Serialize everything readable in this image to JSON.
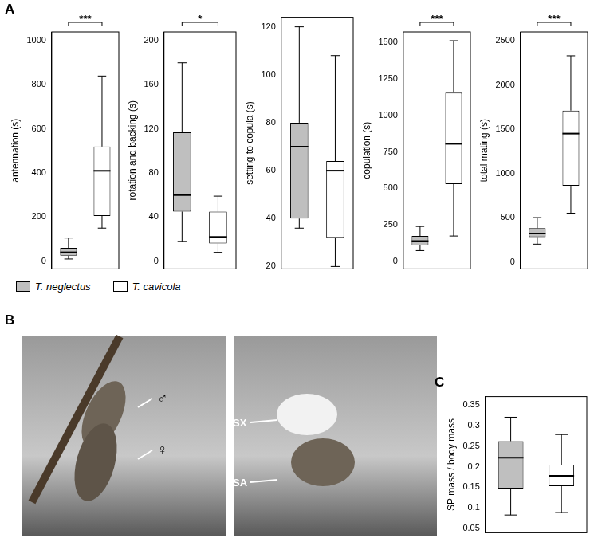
{
  "chart_data": [
    {
      "type": "box",
      "ylabel": "antennation (s)",
      "ylim": [
        -35,
        1040
      ],
      "yticks": [
        0,
        200,
        400,
        600,
        800,
        1000
      ],
      "grid": false,
      "tick_labels": "y",
      "significance": "***",
      "series": [
        {
          "name": "T. neglectus",
          "color": "#bfbfbf",
          "min": 10,
          "q1": 25,
          "median": 40,
          "q3": 60,
          "max": 105
        },
        {
          "name": "T. cavicola",
          "color": "#ffffff",
          "min": 150,
          "q1": 205,
          "median": 410,
          "q3": 520,
          "max": 840
        }
      ]
    },
    {
      "type": "box",
      "ylabel": "rotation and backing (s)",
      "ylim": [
        -7,
        208
      ],
      "yticks": [
        0,
        40,
        80,
        120,
        160,
        200
      ],
      "grid": false,
      "tick_labels": "y",
      "significance": "*",
      "series": [
        {
          "name": "T. neglectus",
          "color": "#bfbfbf",
          "min": 18,
          "q1": 45,
          "median": 60,
          "q3": 117,
          "max": 180
        },
        {
          "name": "T. cavicola",
          "color": "#ffffff",
          "min": 8,
          "q1": 16,
          "median": 22,
          "q3": 45,
          "max": 59
        }
      ]
    },
    {
      "type": "box",
      "ylabel": "setting to copula (s)",
      "ylim": [
        19,
        124
      ],
      "yticks": [
        20,
        40,
        60,
        80,
        100,
        120
      ],
      "grid": false,
      "tick_labels": "y",
      "series": [
        {
          "name": "T. neglectus",
          "color": "#bfbfbf",
          "min": 36,
          "q1": 40,
          "median": 70,
          "q3": 80,
          "max": 120
        },
        {
          "name": "T. cavicola",
          "color": "#ffffff",
          "min": 20,
          "q1": 32,
          "median": 60,
          "q3": 64,
          "max": 108
        }
      ]
    },
    {
      "type": "box",
      "ylabel": "copulation (s)",
      "ylim": [
        -50,
        1570
      ],
      "yticks": [
        0,
        250,
        500,
        750,
        1000,
        1250,
        1500
      ],
      "grid": false,
      "tick_labels": "y",
      "significance": "***",
      "series": [
        {
          "name": "T. neglectus",
          "color": "#bfbfbf",
          "min": 75,
          "q1": 110,
          "median": 140,
          "q3": 175,
          "max": 240
        },
        {
          "name": "T. cavicola",
          "color": "#ffffff",
          "min": 175,
          "q1": 530,
          "median": 805,
          "q3": 1155,
          "max": 1510
        }
      ]
    },
    {
      "type": "box",
      "ylabel": "total mating (s)",
      "ylim": [
        -80,
        2600
      ],
      "yticks": [
        0,
        500,
        1000,
        1500,
        2000,
        2500
      ],
      "grid": false,
      "tick_labels": "y",
      "significance": "***",
      "series": [
        {
          "name": "T. neglectus",
          "color": "#bfbfbf",
          "min": 200,
          "q1": 280,
          "median": 320,
          "q3": 380,
          "max": 500
        },
        {
          "name": "T. cavicola",
          "color": "#ffffff",
          "min": 550,
          "q1": 860,
          "median": 1450,
          "q3": 1710,
          "max": 2330
        }
      ]
    },
    {
      "type": "box",
      "ylabel": "SP mass / body mass",
      "ylim": [
        0.04,
        0.37
      ],
      "yticks": [
        0.05,
        0.1,
        0.15,
        0.2,
        0.25,
        0.3,
        0.35
      ],
      "grid": false,
      "tick_labels": "y",
      "series": [
        {
          "name": "T. neglectus",
          "color": "#bfbfbf",
          "min": 0.083,
          "q1": 0.147,
          "median": 0.222,
          "q3": 0.262,
          "max": 0.32
        },
        {
          "name": "T. cavicola",
          "color": "#ffffff",
          "min": 0.089,
          "q1": 0.153,
          "median": 0.178,
          "q3": 0.205,
          "max": 0.278
        }
      ]
    }
  ],
  "figure": {
    "panels": [
      "A",
      "B",
      "C"
    ],
    "photos": [
      {
        "labels": [
          "♂",
          "♀"
        ]
      },
      {
        "labels": [
          "SX",
          "SA"
        ]
      }
    ]
  }
}
